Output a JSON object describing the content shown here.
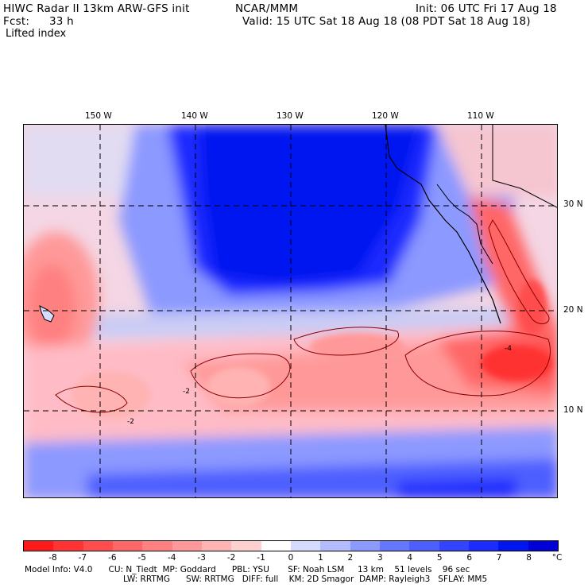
{
  "header": {
    "model_title": "HIWC Radar II 13km ARW-GFS init",
    "org": "NCAR/MMM",
    "init": "Init: 06 UTC Fri 17 Aug 18",
    "fcst_label": "Fcst:",
    "fcst_value": "33 h",
    "valid": "Valid: 15 UTC Sat 18 Aug 18 (08 PDT Sat 18 Aug 18)",
    "field": "Lifted index"
  },
  "map": {
    "lon_labels": [
      "150 W",
      "140 W",
      "130 W",
      "120 W",
      "110 W"
    ],
    "lat_labels": [
      "30 N",
      "20 N",
      "10 N"
    ],
    "contour_labels": [
      "-2",
      "-2",
      "-4"
    ]
  },
  "colorbar": {
    "ticks": [
      "-8",
      "-7",
      "-6",
      "-5",
      "-4",
      "-3",
      "-2",
      "-1",
      "0",
      "1",
      "2",
      "3",
      "4",
      "5",
      "6",
      "7",
      "8"
    ],
    "unit": "°C",
    "colors": [
      "#ff1a1a",
      "#ff3333",
      "#ff4d4d",
      "#ff6666",
      "#ff8080",
      "#ff9999",
      "#ffb3b3",
      "#ffd0d0",
      "#ffffff",
      "#d6dcff",
      "#b3bcff",
      "#8c99ff",
      "#6677ff",
      "#4d5fff",
      "#3344ff",
      "#1a2cff",
      "#0016f0",
      "#0000d8"
    ]
  },
  "footer": {
    "line1": "Model Info: V4.0      CU: N_Tiedt  MP: Goddard      PBL: YSU       SF: Noah LSM     13 km    51 levels    96 sec",
    "line2": "LW: RRTMG      SW: RRTMG   DIFF: full    KM: 2D Smagor  DAMP: Rayleigh3   SFLAY: MM5"
  }
}
